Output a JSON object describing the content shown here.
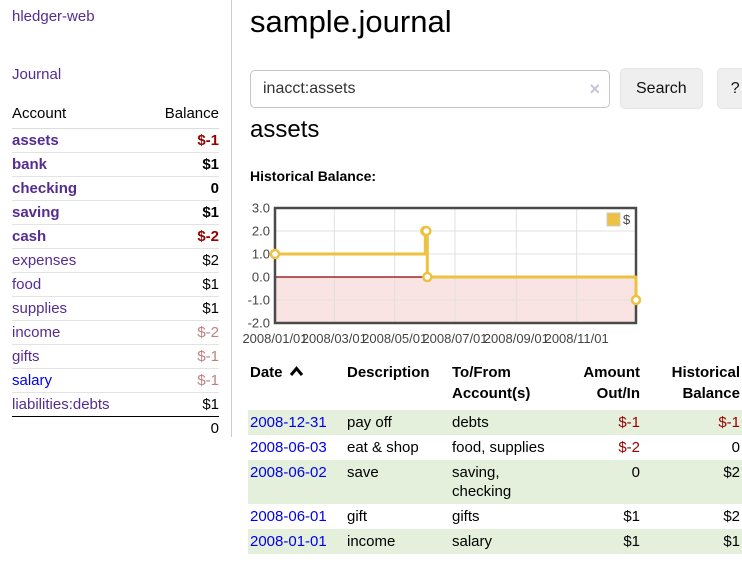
{
  "colors": {
    "link_purple": "#552C90",
    "link_blue": "#0000EE",
    "negative_strong": "#990000",
    "negative_faded": "#C08080",
    "row_highlight_green": "#E4EFDC",
    "chart_line_gold": "#EDC240",
    "chart_negative_region": "#FAE3E3",
    "chart_zero_line": "#8B0000"
  },
  "sidebar": {
    "app_title": "hledger-web",
    "journal_link": "Journal",
    "accounts": {
      "header_account": "Account",
      "header_balance": "Balance",
      "rows": [
        {
          "name": "assets",
          "balance": "$-1",
          "depth": 1,
          "bold": true,
          "neg": "strong"
        },
        {
          "name": "bank",
          "balance": "$1",
          "depth": 2,
          "bold": true
        },
        {
          "name": "checking",
          "balance": "0",
          "depth": 3,
          "bold": true
        },
        {
          "name": "saving",
          "balance": "$1",
          "depth": 3,
          "bold": true
        },
        {
          "name": "cash",
          "balance": "$-2",
          "depth": 2,
          "bold": true,
          "neg": "strong"
        },
        {
          "name": "expenses",
          "balance": "$2",
          "depth": 1
        },
        {
          "name": "food",
          "balance": "$1",
          "depth": 2
        },
        {
          "name": "supplies",
          "balance": "$1",
          "depth": 2
        },
        {
          "name": "income",
          "balance": "$-2",
          "depth": 1,
          "neg": "faded"
        },
        {
          "name": "gifts",
          "balance": "$-1",
          "depth": 2,
          "neg": "faded"
        },
        {
          "name": "salary",
          "balance": "$-1",
          "depth": 2,
          "neg": "faded",
          "link": "blue"
        },
        {
          "name": "liabilities:debts",
          "balance": "$1",
          "depth": 1
        }
      ],
      "total_balance": "0"
    }
  },
  "main": {
    "title": "sample.journal",
    "search": {
      "value": "inacct:assets",
      "clear_icon": "×",
      "button_label": "Search",
      "help_label": "?"
    },
    "section_title": "assets",
    "chart_label": "Historical Balance:",
    "table": {
      "headers": [
        {
          "label": "Date",
          "sorted": true
        },
        {
          "label": "Description"
        },
        {
          "label": "To/From Account(s)"
        },
        {
          "label": "Amount Out/In"
        },
        {
          "label": "Historical Balance"
        }
      ],
      "rows": [
        {
          "date": "2008-12-31",
          "description": "pay off",
          "accounts": "debts",
          "amount": "$-1",
          "balance": "$-1",
          "highlight": true
        },
        {
          "date": "2008-06-03",
          "description": "eat & shop",
          "accounts": "food, supplies",
          "amount": "$-2",
          "balance": "0",
          "highlight": false
        },
        {
          "date": "2008-06-02",
          "description": "save",
          "accounts": "saving,\nchecking",
          "amount": "0",
          "balance": "$2",
          "highlight": true
        },
        {
          "date": "2008-06-01",
          "description": "gift",
          "accounts": "gifts",
          "amount": "$1",
          "balance": "$2",
          "highlight": false
        },
        {
          "date": "2008-01-01",
          "description": "income",
          "accounts": "salary",
          "amount": "$1",
          "balance": "$1",
          "highlight": true
        }
      ]
    }
  },
  "chart_data": {
    "type": "line",
    "title": "Historical Balance",
    "step": true,
    "xlim_days": [
      0,
      365
    ],
    "ylim": [
      -2,
      3
    ],
    "grid": true,
    "y_ticks": [
      "3.0",
      "2.0",
      "1.0",
      "0.0",
      "-1.0",
      "-2.0"
    ],
    "x_ticks": [
      {
        "label": "2008/01/01",
        "day": 0
      },
      {
        "label": "2008/03/01",
        "day": 60
      },
      {
        "label": "2008/05/01",
        "day": 121
      },
      {
        "label": "2008/07/01",
        "day": 182
      },
      {
        "label": "2008/09/01",
        "day": 244
      },
      {
        "label": "2008/11/01",
        "day": 305
      }
    ],
    "series": [
      {
        "name": "$",
        "color": "#EDC240",
        "points": [
          {
            "date": "2008/01/01",
            "day": 0,
            "value": 1
          },
          {
            "date": "2008/06/01",
            "day": 152,
            "value": 2
          },
          {
            "date": "2008/06/02",
            "day": 153,
            "value": 2
          },
          {
            "date": "2008/06/03",
            "day": 154,
            "value": 0
          },
          {
            "date": "2008/12/31",
            "day": 365,
            "value": -1
          }
        ]
      }
    ],
    "legend": {
      "position": "top-right",
      "label": "$"
    },
    "negative_region_color": "#FAE3E3",
    "zero_line_color": "#8B0000"
  }
}
